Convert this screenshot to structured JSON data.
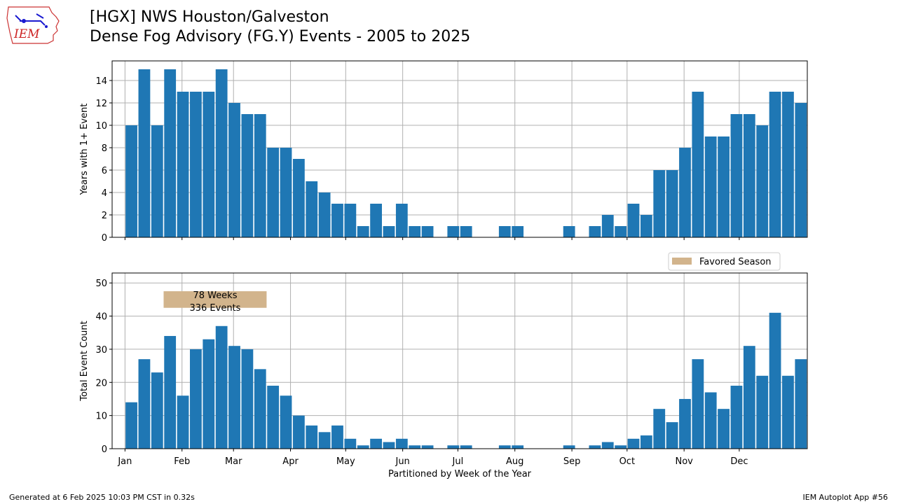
{
  "header": {
    "line1": "[HGX] NWS Houston/Galveston",
    "line2": "Dense Fog Advisory (FG.Y) Events - 2005 to 2025",
    "logo_text": "IEM"
  },
  "footer": {
    "left": "Generated at 6 Feb 2025 10:03 PM CST in 0.32s",
    "right": "IEM Autoplot App #56"
  },
  "colors": {
    "bar": "#1f77b4",
    "favored": "#d2b48c",
    "grid": "#b0b0b0"
  },
  "chart_data": [
    {
      "type": "bar",
      "ylabel": "Years with 1+ Event",
      "ylim": [
        0,
        15.75
      ],
      "yticks": [
        0,
        2,
        4,
        6,
        8,
        10,
        12,
        14
      ],
      "grid": true,
      "weeks": [
        1,
        2,
        3,
        4,
        5,
        6,
        7,
        8,
        9,
        10,
        11,
        12,
        13,
        14,
        15,
        16,
        17,
        18,
        19,
        20,
        21,
        22,
        23,
        24,
        25,
        26,
        27,
        28,
        29,
        30,
        31,
        32,
        33,
        34,
        35,
        36,
        37,
        38,
        39,
        40,
        41,
        42,
        43,
        44,
        45,
        46,
        47,
        48,
        49,
        50,
        51,
        52,
        53
      ],
      "values": [
        10,
        15,
        10,
        15,
        13,
        13,
        13,
        15,
        12,
        11,
        11,
        8,
        8,
        7,
        5,
        4,
        3,
        3,
        1,
        3,
        1,
        3,
        1,
        1,
        0,
        1,
        1,
        0,
        0,
        1,
        1,
        0,
        0,
        0,
        1,
        0,
        1,
        2,
        1,
        3,
        2,
        6,
        6,
        8,
        13,
        9,
        9,
        11,
        11,
        10,
        13,
        13,
        12
      ]
    },
    {
      "type": "bar",
      "ylabel": "Total Event Count",
      "xlabel": "Partitioned by Week of the Year",
      "ylim": [
        0,
        53
      ],
      "yticks": [
        0,
        10,
        20,
        30,
        40,
        50
      ],
      "grid": true,
      "weeks": [
        1,
        2,
        3,
        4,
        5,
        6,
        7,
        8,
        9,
        10,
        11,
        12,
        13,
        14,
        15,
        16,
        17,
        18,
        19,
        20,
        21,
        22,
        23,
        24,
        25,
        26,
        27,
        28,
        29,
        30,
        31,
        32,
        33,
        34,
        35,
        36,
        37,
        38,
        39,
        40,
        41,
        42,
        43,
        44,
        45,
        46,
        47,
        48,
        49,
        50,
        51,
        52,
        53
      ],
      "values": [
        14,
        27,
        23,
        34,
        16,
        30,
        33,
        37,
        31,
        30,
        24,
        19,
        16,
        10,
        7,
        5,
        7,
        3,
        1,
        3,
        2,
        3,
        1,
        1,
        0,
        1,
        1,
        0,
        0,
        1,
        1,
        0,
        0,
        0,
        1,
        0,
        1,
        2,
        1,
        3,
        4,
        12,
        8,
        15,
        27,
        17,
        12,
        19,
        31,
        22,
        41,
        22,
        27
      ],
      "legend": {
        "label": "Favored Season",
        "placement": "upper-right"
      },
      "favored_season": {
        "start_week": 4,
        "end_week": 11,
        "label_lines": [
          "78 Weeks",
          "336 Events"
        ]
      },
      "x_tick_labels": [
        "Jan",
        "Feb",
        "Mar",
        "Apr",
        "May",
        "Jun",
        "Jul",
        "Aug",
        "Sep",
        "Oct",
        "Nov",
        "Dec"
      ]
    }
  ]
}
